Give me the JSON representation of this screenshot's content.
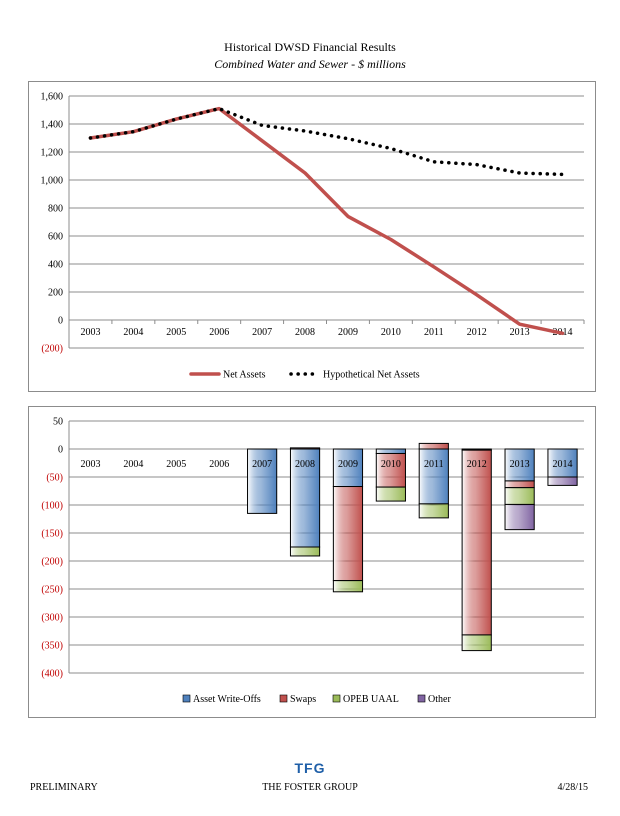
{
  "header": {
    "title": "Historical DWSD Financial Results",
    "subtitle": "Combined Water and Sewer - $ millions"
  },
  "chart_data": [
    {
      "type": "line",
      "categories": [
        "2003",
        "2004",
        "2005",
        "2006",
        "2007",
        "2008",
        "2009",
        "2010",
        "2011",
        "2012",
        "2013",
        "2014"
      ],
      "ylim": [
        -200,
        1600
      ],
      "yticks": [
        -200,
        0,
        200,
        400,
        600,
        800,
        1000,
        1200,
        1400,
        1600
      ],
      "ytick_labels": [
        "(200)",
        "0",
        "200",
        "400",
        "600",
        "800",
        "1,000",
        "1,200",
        "1,400",
        "1,600"
      ],
      "grid": true,
      "legend": "bottom",
      "series": [
        {
          "name": "Net Assets",
          "color": "#c0504d",
          "style": "solid",
          "values": [
            1300,
            1345,
            1435,
            1510,
            1280,
            1050,
            740,
            575,
            380,
            180,
            -30,
            -95
          ]
        },
        {
          "name": "Hypothetical Net Assets",
          "color": "#000000",
          "style": "dotted",
          "values": [
            1300,
            1345,
            1435,
            1510,
            1390,
            1350,
            1295,
            1225,
            1130,
            1110,
            1050,
            1040
          ]
        }
      ]
    },
    {
      "type": "bar",
      "stacked": true,
      "categories": [
        "2003",
        "2004",
        "2005",
        "2006",
        "2007",
        "2008",
        "2009",
        "2010",
        "2011",
        "2012",
        "2013",
        "2014"
      ],
      "highlight_categories": [
        "2007",
        "2008",
        "2009",
        "2010",
        "2011",
        "2012",
        "2013",
        "2014"
      ],
      "ylim": [
        -400,
        50
      ],
      "yticks": [
        -400,
        -350,
        -300,
        -250,
        -200,
        -150,
        -100,
        -50,
        0,
        50
      ],
      "ytick_labels": [
        "(400)",
        "(350)",
        "(300)",
        "(250)",
        "(200)",
        "(150)",
        "(100)",
        "(50)",
        "0",
        "50"
      ],
      "grid": true,
      "legend": "bottom",
      "series": [
        {
          "name": "Asset Write-Offs",
          "color": "#4f81bd",
          "values": [
            0,
            0,
            0,
            0,
            -115,
            -175,
            -67,
            -8,
            -98,
            -2,
            -57,
            -50
          ]
        },
        {
          "name": "Swaps",
          "color": "#c0504d",
          "values": [
            0,
            0,
            0,
            0,
            0,
            2,
            -168,
            -60,
            10,
            -330,
            -12,
            0
          ]
        },
        {
          "name": "OPEB UAAL",
          "color": "#9bbb59",
          "values": [
            0,
            0,
            0,
            0,
            0,
            -16,
            -20,
            -25,
            -25,
            -28,
            -30,
            0
          ]
        },
        {
          "name": "Other",
          "color": "#8064a2",
          "values": [
            0,
            0,
            0,
            0,
            0,
            0,
            0,
            0,
            0,
            0,
            -45,
            -15
          ]
        }
      ]
    }
  ],
  "footer": {
    "left": "PRELIMINARY",
    "logo": "TFG",
    "center": "THE FOSTER GROUP",
    "right": "4/28/15"
  }
}
